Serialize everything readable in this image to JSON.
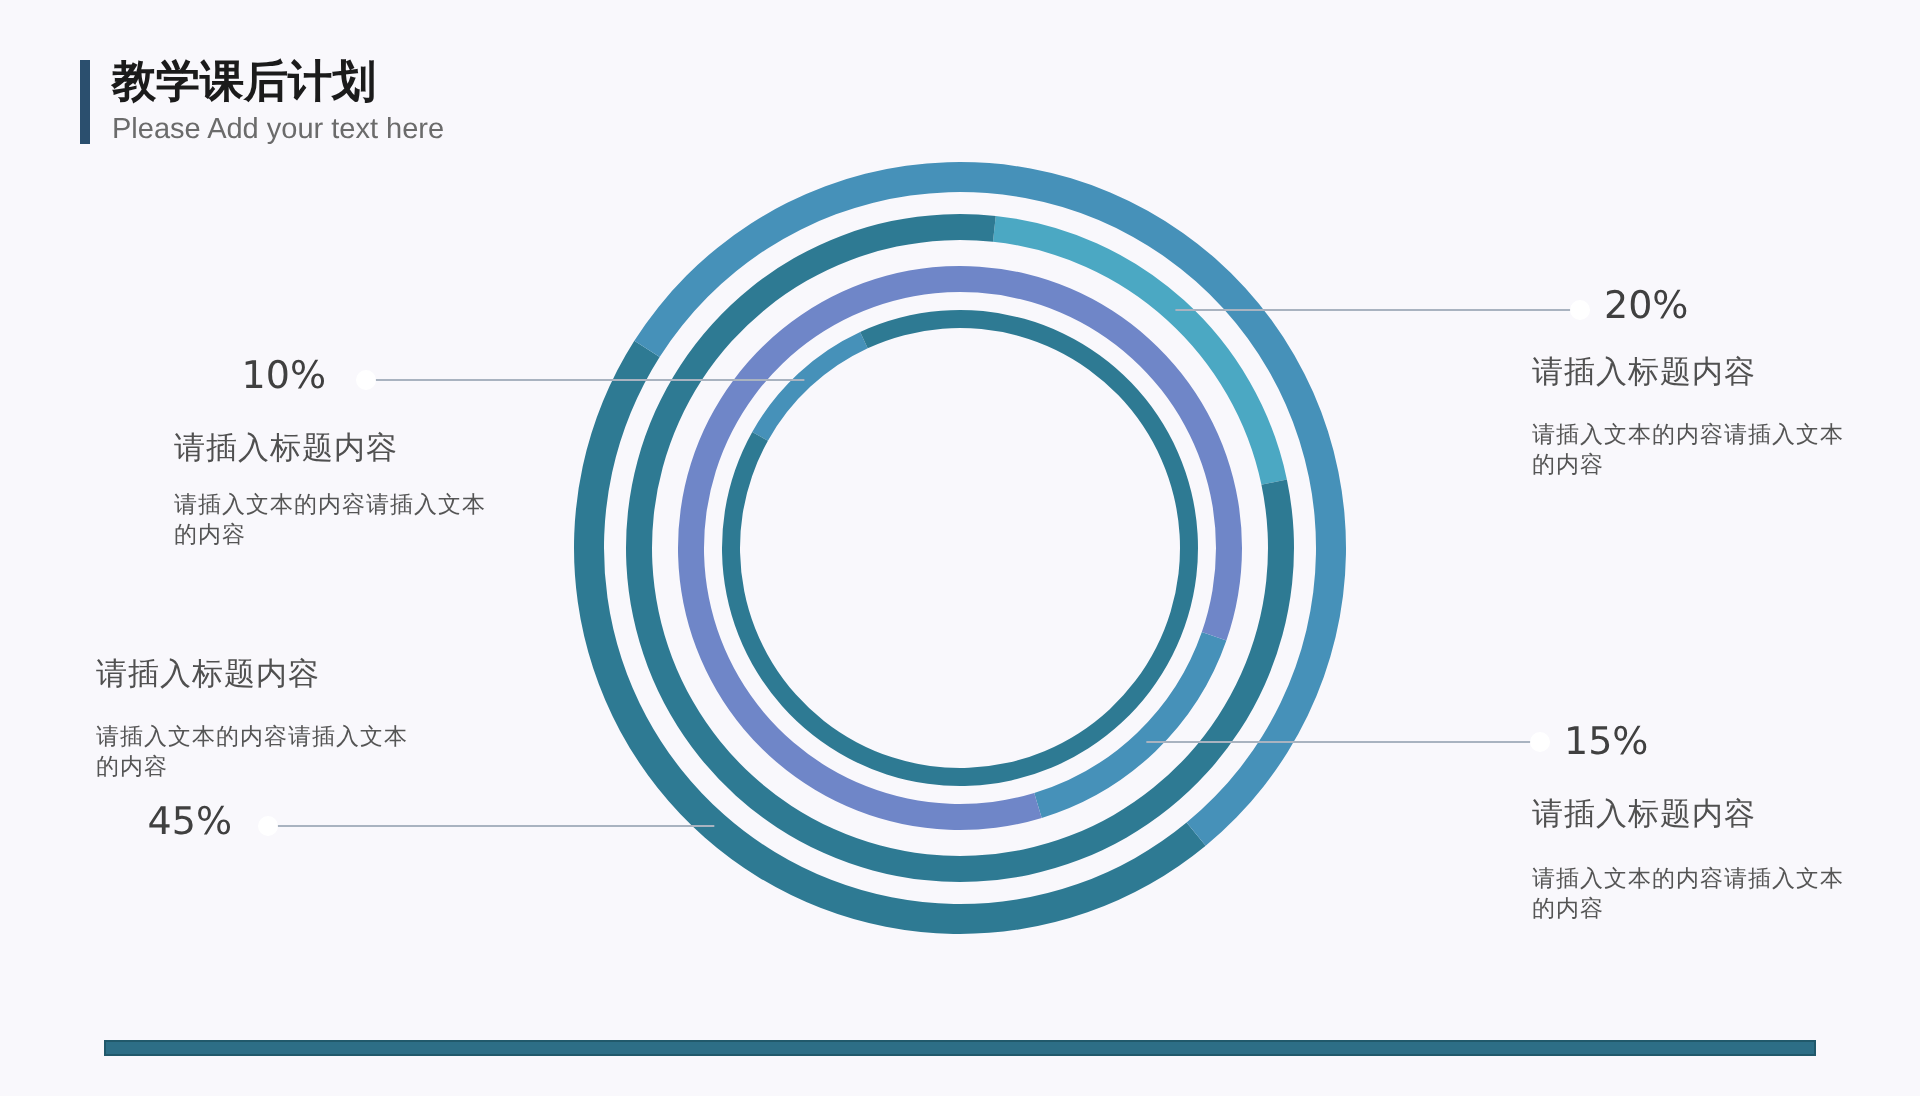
{
  "chart_data": [
    {
      "type": "donut",
      "title": "教学课后计划",
      "subtitle": "Please Add your text here",
      "categories": [
        null,
        null
      ],
      "series": [
        {
          "name": "请插入标题内容",
          "values": [
            45,
            55
          ],
          "colors": [
            "#2e7a93",
            "#4691b9"
          ],
          "value_labels": [
            "45%",
            null
          ]
        }
      ],
      "annotations": [
        "请插入文本的内容请插入文本的内容"
      ]
    },
    {
      "type": "donut",
      "categories": [
        null,
        null
      ],
      "series": [
        {
          "name": "请插入标题内容",
          "values": [
            20,
            80
          ],
          "colors": [
            "#4ba8c3",
            "#2e7a93"
          ],
          "value_labels": [
            "20%",
            null
          ]
        }
      ],
      "annotations": [
        "请插入文本的内容请插入文本的内容"
      ]
    },
    {
      "type": "donut",
      "categories": [
        null,
        null
      ],
      "series": [
        {
          "name": "请插入标题内容",
          "values": [
            15,
            85
          ],
          "colors": [
            "#4691b9",
            "#6f86c8"
          ],
          "value_labels": [
            "15%",
            null
          ]
        }
      ],
      "annotations": [
        "请插入文本的内容请插入文本的内容"
      ]
    },
    {
      "type": "donut",
      "categories": [
        null,
        null
      ],
      "series": [
        {
          "name": "请插入标题内容",
          "values": [
            10,
            90
          ],
          "colors": [
            "#4691b9",
            "#2e7a93"
          ],
          "value_labels": [
            "10%",
            null
          ]
        }
      ],
      "annotations": [
        "请插入文本的内容请插入文本的内容"
      ]
    }
  ]
}
